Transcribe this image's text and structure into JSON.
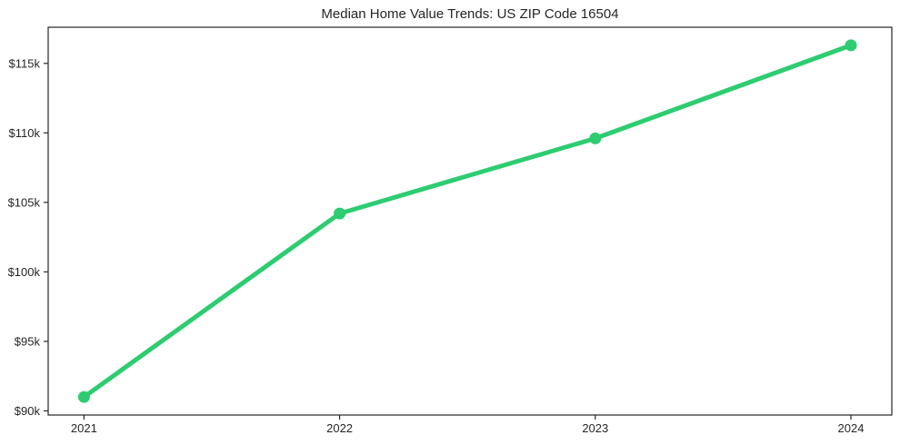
{
  "chart_data": {
    "type": "line",
    "title": "Median Home Value Trends: US ZIP Code 16504",
    "x": [
      2021,
      2022,
      2023,
      2024
    ],
    "x_tick_labels": [
      "2021",
      "2022",
      "2023",
      "2024"
    ],
    "series": [
      {
        "name": "Median Home Value",
        "values": [
          91000,
          104200,
          109600,
          116300
        ]
      }
    ],
    "y_ticks": [
      90000,
      95000,
      100000,
      105000,
      110000,
      115000
    ],
    "y_tick_labels": [
      "$90k",
      "$95k",
      "$100k",
      "$105k",
      "$110k",
      "$115k"
    ],
    "xlim": [
      2020.86,
      2024.16
    ],
    "ylim": [
      89700,
      117600
    ],
    "grid": false,
    "legend": "none",
    "xlabel": "",
    "ylabel": "",
    "colors": {
      "line": "#2ecc71",
      "marker": "#2ecc71",
      "text": "#262626",
      "spine": "#262626",
      "background": "#ffffff"
    }
  }
}
